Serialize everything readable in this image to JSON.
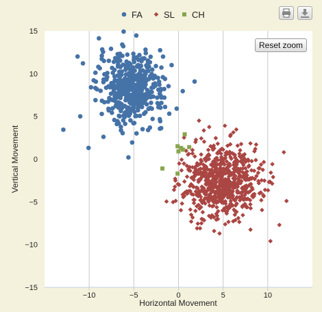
{
  "toolbar": {
    "print_icon": "print-icon",
    "export_icon": "download-icon",
    "reset_zoom_label": "Reset zoom"
  },
  "chart_data": {
    "type": "scatter",
    "title": "",
    "xlabel": "Horizontal Movement",
    "ylabel": "Vertical Movement",
    "xlim": [
      -15,
      15
    ],
    "ylim": [
      -15,
      15
    ],
    "xticks": [
      -10,
      -5,
      0,
      5,
      10
    ],
    "yticks": [
      -15,
      -10,
      -5,
      0,
      5,
      10,
      15
    ],
    "grid": "vertical-lines",
    "legend_position": "top-center",
    "series": [
      {
        "name": "FA",
        "color": "#4572a7",
        "marker": "circle",
        "approx_count": 480,
        "center": [
          -5.2,
          8.3
        ],
        "spread": [
          1.8,
          2.0
        ],
        "points": [
          [
            -11.3,
            12.0
          ],
          [
            -10.7,
            11.2
          ],
          [
            -11.0,
            5.0
          ],
          [
            -8.4,
            2.6
          ],
          [
            -6.3,
            13.4
          ],
          [
            -3.4,
            3.4
          ],
          [
            -2.9,
            4.7
          ],
          [
            -4.1,
            11.7
          ],
          [
            -1.9,
            7.2
          ],
          [
            -0.2,
            5.9
          ],
          [
            -1.6,
            8.2
          ],
          [
            -1.5,
            6.1
          ],
          [
            -9.8,
            8.4
          ],
          [
            -5.0,
            11.6
          ],
          [
            -4.7,
            3.0
          ],
          [
            -7.8,
            11.5
          ],
          [
            -9.3,
            10.1
          ],
          [
            -6.9,
            4.1
          ],
          [
            -2.3,
            9.5
          ],
          [
            -4.4,
            6.3
          ]
        ]
      },
      {
        "name": "SL",
        "color": "#aa4643",
        "marker": "diamond",
        "approx_count": 700,
        "center": [
          4.8,
          -2.6
        ],
        "spread": [
          2.1,
          2.1
        ],
        "points": [
          [
            2.3,
            4.5
          ],
          [
            4.4,
            1.8
          ],
          [
            5.2,
            3.9
          ],
          [
            11.8,
            0.8
          ],
          [
            12.1,
            -4.9
          ],
          [
            11.3,
            -7.7
          ],
          [
            10.3,
            -9.6
          ],
          [
            4.6,
            -8.7
          ],
          [
            -0.5,
            -3.6
          ],
          [
            0.4,
            -5.2
          ],
          [
            9.7,
            -3.6
          ],
          [
            8.7,
            1.7
          ],
          [
            5.8,
            2.7
          ],
          [
            6.7,
            -6.9
          ],
          [
            10.6,
            -2.1
          ],
          [
            2.6,
            -7.0
          ]
        ]
      },
      {
        "name": "CH",
        "color": "#89a54e",
        "marker": "square",
        "approx_count": 8,
        "points": [
          [
            -1.8,
            -1.1
          ],
          [
            -0.1,
            -1.7
          ],
          [
            0.7,
            2.9
          ],
          [
            1.2,
            1.4
          ],
          [
            0.5,
            1.1
          ],
          [
            0.3,
            1.3
          ],
          [
            -0.1,
            1.5
          ],
          [
            0.0,
            0.9
          ]
        ]
      }
    ]
  }
}
